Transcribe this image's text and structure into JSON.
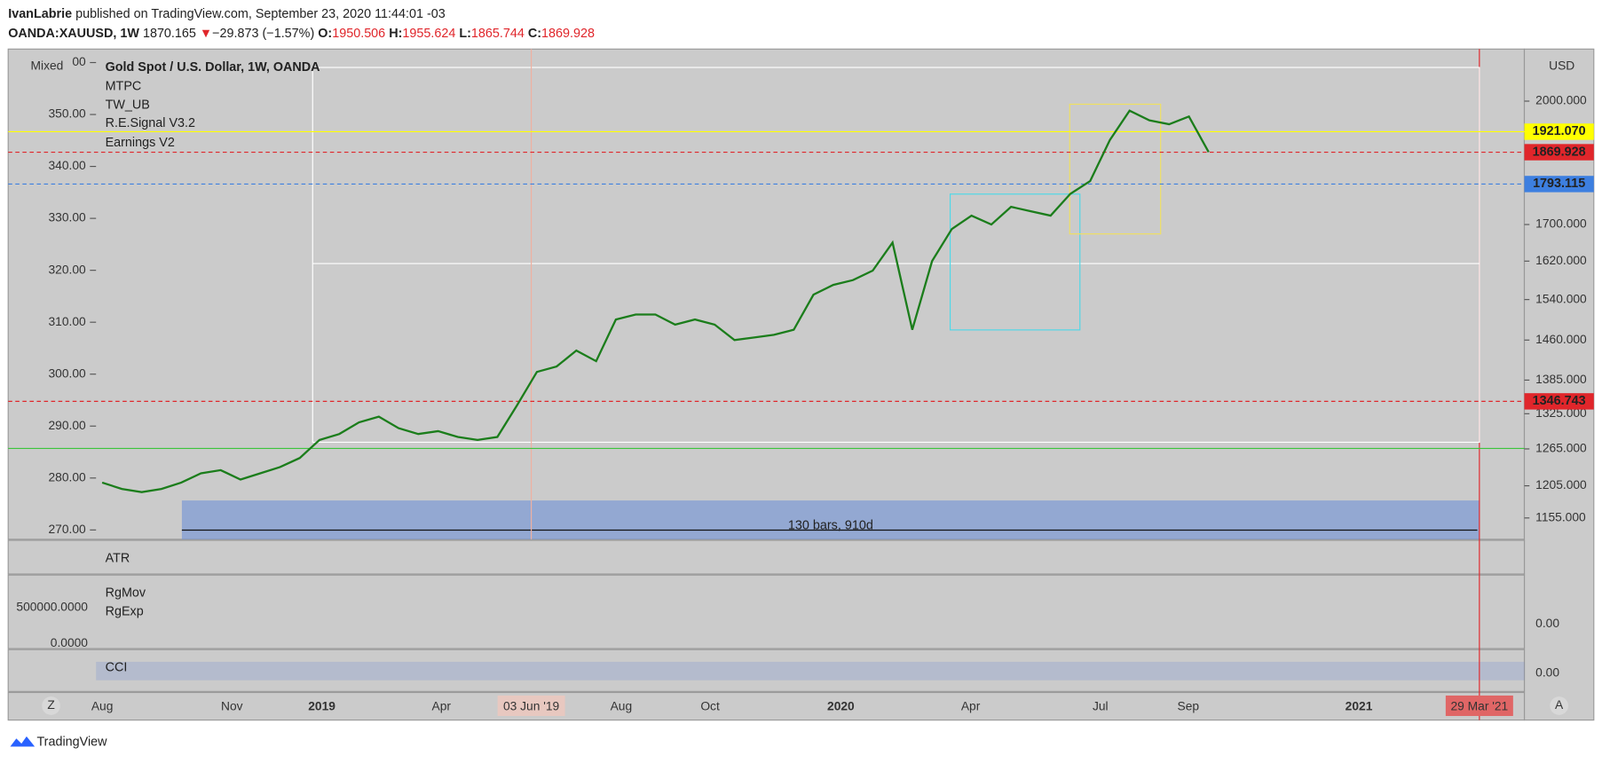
{
  "header": {
    "publisher": "IvanLabrie",
    "published_text": "published on TradingView.com, September 23, 2020 11:44:01 -03",
    "symbol": "OANDA:XAUUSD, 1W",
    "last": "1870.165",
    "change": "−29.873 (−1.57%)",
    "ohlc": [
      {
        "label": "O:",
        "value": "1950.506"
      },
      {
        "label": "H:",
        "value": "1955.624"
      },
      {
        "label": "L:",
        "value": "1865.744"
      },
      {
        "label": "C:",
        "value": "1869.928"
      }
    ]
  },
  "legend": [
    "Gold Spot / U.S. Dollar, 1W, OANDA",
    "MTPC",
    "TW_UB",
    "R.E.Signal V3.2",
    "Earnings V2"
  ],
  "mixed": "Mixed",
  "currency": "USD",
  "measure": "130 bars, 910d",
  "panes": {
    "atr": "ATR",
    "rgmov": "RgMov",
    "rgexp": "RgExp",
    "vol_left_top": "500000.0000",
    "vol_left_zero": "0.0000",
    "vol_right_zero": "0.00",
    "cci": "CCI",
    "cci_zero": "0.00"
  },
  "x_labels": [
    "Aug",
    "Nov",
    "2019",
    "Apr",
    "03 Jun '19",
    "Aug",
    "Oct",
    "2020",
    "Apr",
    "Jul",
    "Sep",
    "2021",
    "29 Mar '21"
  ],
  "buttons": [
    "Z",
    "A"
  ],
  "footer": "TradingView",
  "chart_data": {
    "type": "line",
    "log_scale": true,
    "color": "#1b7d1b",
    "values": [
      1210,
      1200,
      1195,
      1200,
      1210,
      1225,
      1230,
      1215,
      1225,
      1235,
      1250,
      1280,
      1290,
      1310,
      1320,
      1300,
      1290,
      1295,
      1285,
      1280,
      1285,
      1340,
      1400,
      1410,
      1440,
      1420,
      1500,
      1510,
      1510,
      1490,
      1500,
      1490,
      1460,
      1465,
      1470,
      1480,
      1550,
      1570,
      1580,
      1600,
      1660,
      1480,
      1620,
      1690,
      1720,
      1700,
      1740,
      1730,
      1720,
      1770,
      1800,
      1900,
      1975,
      1950,
      1940,
      1960,
      1870
    ],
    "ylim": [
      1123,
      2142
    ],
    "yticks": [
      {
        "value": 1155,
        "label": "1155.000"
      },
      {
        "value": 1205,
        "label": "1205.000"
      },
      {
        "value": 1265,
        "label": "1265.000"
      },
      {
        "value": 1325,
        "label": "1325.000"
      },
      {
        "value": 1385,
        "label": "1385.000"
      },
      {
        "value": 1460,
        "label": "1460.000"
      },
      {
        "value": 1540,
        "label": "1540.000"
      },
      {
        "value": 1620,
        "label": "1620.000"
      },
      {
        "value": 1700,
        "label": "1700.000"
      },
      {
        "value": 2000,
        "label": "2000.000"
      }
    ],
    "price_lines": [
      {
        "value": 1921.07,
        "label": "1921.070",
        "color": "#ffff00"
      },
      {
        "value": 1869.928,
        "label": "1869.928",
        "color": "#e0262b"
      },
      {
        "value": 1793.115,
        "label": "1793.115",
        "color": "#3d7fe0"
      },
      {
        "value": 1346.743,
        "label": "1346.743",
        "color": "#e0262b"
      }
    ],
    "left_ylim": [
      268.2,
      362.6
    ],
    "left_yticks": [
      {
        "value": 270,
        "label": "270.00"
      },
      {
        "value": 280,
        "label": "280.00"
      },
      {
        "value": 290,
        "label": "290.00"
      },
      {
        "value": 300,
        "label": "300.00"
      },
      {
        "value": 310,
        "label": "310.00"
      },
      {
        "value": 320,
        "label": "320.00"
      },
      {
        "value": 330,
        "label": "330.00"
      },
      {
        "value": 340,
        "label": "340.00"
      },
      {
        "value": 350,
        "label": "350.00"
      },
      {
        "value": 360,
        "label": "00"
      }
    ]
  }
}
